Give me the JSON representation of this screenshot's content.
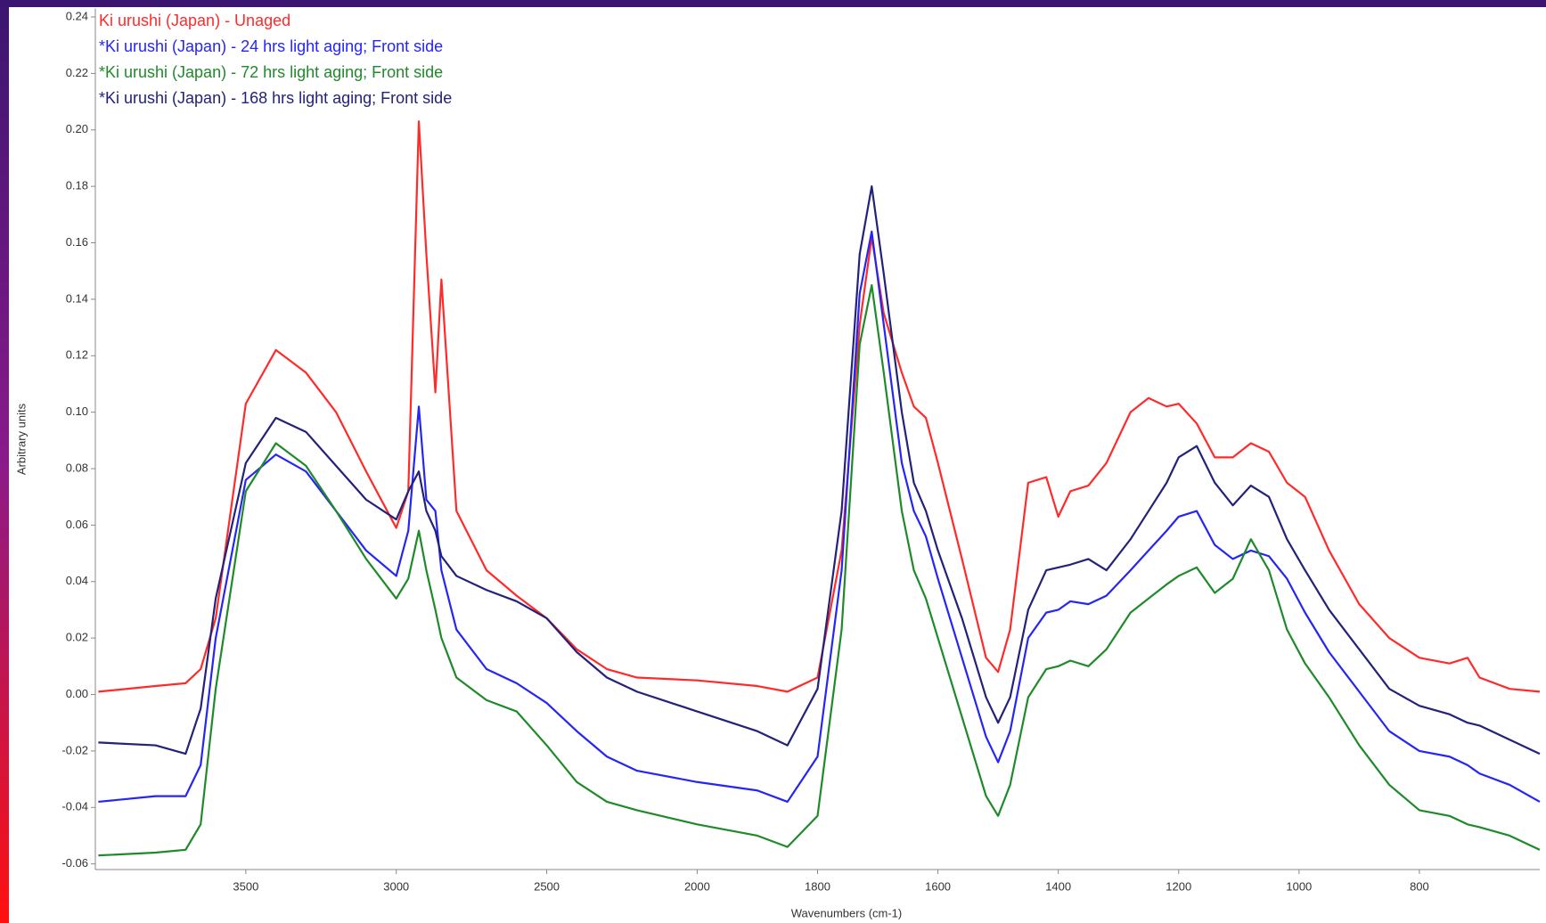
{
  "chart_data": {
    "type": "line",
    "x_label": "Wavenumbers (cm-1)",
    "y_label": "Arbitrary units",
    "legend": "upper left",
    "grid": false,
    "xlim": [
      4000,
      600
    ],
    "x_scale_break": 2000,
    "ylim": [
      -0.062,
      0.243
    ],
    "xticks": [
      3500,
      3000,
      2500,
      2000,
      1800,
      1600,
      1400,
      1200,
      1000,
      800
    ],
    "yticks": [
      -0.06,
      -0.04,
      -0.02,
      {
        "value": 0,
        "label": "0.00"
      },
      0.02,
      0.04,
      0.06,
      0.08,
      {
        "value": 0.1,
        "label": "0.10"
      },
      0.12,
      0.14,
      0.16,
      0.18,
      {
        "value": 0.2,
        "label": "0.20"
      },
      0.22,
      0.24
    ],
    "x": [
      3990,
      3800,
      3700,
      3650,
      3600,
      3500,
      3400,
      3300,
      3200,
      3100,
      3000,
      2960,
      2925,
      2900,
      2870,
      2850,
      2800,
      2700,
      2600,
      2500,
      2400,
      2300,
      2200,
      2000,
      1900,
      1850,
      1800,
      1760,
      1730,
      1710,
      1690,
      1660,
      1640,
      1620,
      1600,
      1560,
      1520,
      1500,
      1480,
      1450,
      1420,
      1400,
      1380,
      1350,
      1320,
      1280,
      1250,
      1220,
      1200,
      1170,
      1140,
      1110,
      1080,
      1050,
      1020,
      990,
      950,
      900,
      850,
      800,
      750,
      720,
      700,
      650,
      600
    ],
    "series": [
      {
        "name": "Ki urushi (Japan) - Unaged",
        "color": "#ff2a2a",
        "values": [
          0.001,
          0.003,
          0.004,
          0.009,
          0.027,
          0.103,
          0.122,
          0.114,
          0.1,
          0.079,
          0.059,
          0.072,
          0.203,
          0.156,
          0.107,
          0.147,
          0.065,
          0.044,
          0.035,
          0.027,
          0.016,
          0.009,
          0.006,
          0.005,
          0.003,
          0.001,
          0.006,
          0.051,
          0.131,
          0.162,
          0.135,
          0.114,
          0.102,
          0.098,
          0.082,
          0.048,
          0.013,
          0.008,
          0.023,
          0.075,
          0.077,
          0.063,
          0.072,
          0.074,
          0.082,
          0.1,
          0.105,
          0.102,
          0.103,
          0.096,
          0.084,
          0.084,
          0.089,
          0.086,
          0.075,
          0.07,
          0.051,
          0.032,
          0.02,
          0.013,
          0.011,
          0.013,
          0.006,
          0.002,
          0.001
        ]
      },
      {
        "name": "*Ki urushi (Japan) - 24 hrs light aging; Front side",
        "color": "#2525f5",
        "values": [
          -0.038,
          -0.036,
          -0.036,
          -0.025,
          0.02,
          0.076,
          0.085,
          0.079,
          0.065,
          0.051,
          0.042,
          0.058,
          0.102,
          0.069,
          0.065,
          0.044,
          0.023,
          0.009,
          0.004,
          -0.003,
          -0.013,
          -0.022,
          -0.027,
          -0.031,
          -0.034,
          -0.038,
          -0.022,
          0.044,
          0.142,
          0.164,
          0.131,
          0.082,
          0.065,
          0.056,
          0.041,
          0.013,
          -0.015,
          -0.024,
          -0.013,
          0.02,
          0.029,
          0.03,
          0.033,
          0.032,
          0.035,
          0.044,
          0.051,
          0.058,
          0.063,
          0.065,
          0.053,
          0.048,
          0.051,
          0.049,
          0.041,
          0.029,
          0.015,
          0.001,
          -0.013,
          -0.02,
          -0.022,
          -0.025,
          -0.028,
          -0.032,
          -0.038
        ]
      },
      {
        "name": "*Ki urushi (Japan) - 72 hrs light aging; Front side",
        "color": "#1f8a2a",
        "values": [
          -0.057,
          -0.056,
          -0.055,
          -0.046,
          0.002,
          0.072,
          0.089,
          0.081,
          0.065,
          0.048,
          0.034,
          0.041,
          0.058,
          0.044,
          0.03,
          0.02,
          0.006,
          -0.002,
          -0.006,
          -0.018,
          -0.031,
          -0.038,
          -0.041,
          -0.046,
          -0.05,
          -0.054,
          -0.043,
          0.023,
          0.124,
          0.145,
          0.114,
          0.065,
          0.044,
          0.034,
          0.02,
          -0.008,
          -0.036,
          -0.043,
          -0.032,
          -0.001,
          0.009,
          0.01,
          0.012,
          0.01,
          0.016,
          0.029,
          0.034,
          0.039,
          0.042,
          0.045,
          0.036,
          0.041,
          0.055,
          0.044,
          0.023,
          0.011,
          -0.001,
          -0.018,
          -0.032,
          -0.041,
          -0.043,
          -0.046,
          -0.047,
          -0.05,
          -0.055
        ]
      },
      {
        "name": "*Ki urushi (Japan) - 168 hrs light aging; Front side",
        "color": "#22227a",
        "values": [
          -0.017,
          -0.018,
          -0.021,
          -0.005,
          0.034,
          0.082,
          0.098,
          0.093,
          0.081,
          0.069,
          0.062,
          0.072,
          0.079,
          0.065,
          0.058,
          0.049,
          0.042,
          0.037,
          0.033,
          0.027,
          0.015,
          0.006,
          0.001,
          -0.006,
          -0.013,
          -0.018,
          0.002,
          0.065,
          0.156,
          0.18,
          0.149,
          0.1,
          0.075,
          0.065,
          0.051,
          0.027,
          -0.001,
          -0.01,
          -0.001,
          0.03,
          0.044,
          0.045,
          0.046,
          0.048,
          0.044,
          0.055,
          0.065,
          0.075,
          0.084,
          0.088,
          0.075,
          0.067,
          0.074,
          0.07,
          0.055,
          0.044,
          0.03,
          0.016,
          0.002,
          -0.004,
          -0.007,
          -0.01,
          -0.011,
          -0.016,
          -0.021
        ]
      }
    ]
  }
}
